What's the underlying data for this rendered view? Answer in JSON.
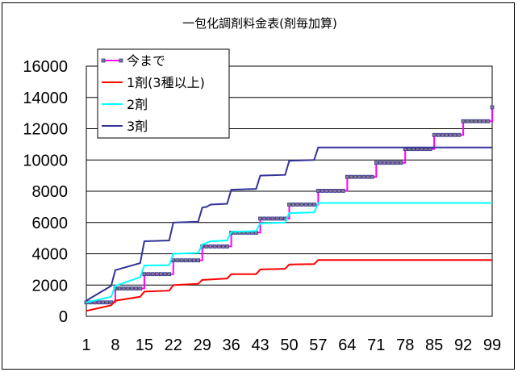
{
  "chart_data": {
    "type": "line",
    "title": "一包化調剤料金表(剤毎加算)",
    "xlabel": "",
    "ylabel": "",
    "ylim": [
      0,
      16000
    ],
    "yticks": [
      "0",
      "2000",
      "4000",
      "6000",
      "8000",
      "10000",
      "12000",
      "14000",
      "16000"
    ],
    "xlim": [
      1,
      99
    ],
    "xticks": [
      "1",
      "8",
      "15",
      "22",
      "29",
      "36",
      "43",
      "50",
      "57",
      "64",
      "71",
      "78",
      "85",
      "92",
      "99"
    ],
    "grid": "horizontal",
    "legend_position": "top-left",
    "series": [
      {
        "name": "今まで",
        "color": "#FF00FF",
        "marker": "square",
        "step_days": [
          1,
          8,
          15,
          22,
          29,
          36,
          43,
          50,
          57,
          64,
          71,
          78,
          85,
          92,
          99
        ],
        "step_values": [
          890,
          1780,
          2700,
          3580,
          4470,
          5350,
          6250,
          7150,
          8030,
          8920,
          9820,
          10700,
          11600,
          12480,
          13370
        ]
      },
      {
        "name": "1剤(3種以上)",
        "color": "#FF0000",
        "points": [
          [
            1,
            350
          ],
          [
            7,
            700
          ],
          [
            8,
            1000
          ],
          [
            14,
            1250
          ],
          [
            15,
            1580
          ],
          [
            21,
            1640
          ],
          [
            22,
            2000
          ],
          [
            28,
            2080
          ],
          [
            29,
            2330
          ],
          [
            35,
            2420
          ],
          [
            36,
            2700
          ],
          [
            42,
            2700
          ],
          [
            43,
            3000
          ],
          [
            49,
            3040
          ],
          [
            50,
            3320
          ],
          [
            56,
            3340
          ],
          [
            57,
            3600
          ],
          [
            99,
            3600
          ]
        ]
      },
      {
        "name": "2剤",
        "color": "#00FFFF",
        "points": [
          [
            1,
            900
          ],
          [
            7,
            1250
          ],
          [
            8,
            1950
          ],
          [
            14,
            2500
          ],
          [
            15,
            3250
          ],
          [
            21,
            3270
          ],
          [
            22,
            4000
          ],
          [
            28,
            4050
          ],
          [
            29,
            4600
          ],
          [
            31,
            4800
          ],
          [
            35,
            4850
          ],
          [
            36,
            5400
          ],
          [
            42,
            5450
          ],
          [
            43,
            5950
          ],
          [
            49,
            6000
          ],
          [
            50,
            6600
          ],
          [
            56,
            6650
          ],
          [
            57,
            7250
          ],
          [
            99,
            7250
          ]
        ]
      },
      {
        "name": "3剤",
        "color": "#333399",
        "points": [
          [
            1,
            1000
          ],
          [
            7,
            1950
          ],
          [
            8,
            2950
          ],
          [
            14,
            3400
          ],
          [
            15,
            4800
          ],
          [
            21,
            4850
          ],
          [
            22,
            6000
          ],
          [
            28,
            6050
          ],
          [
            29,
            6950
          ],
          [
            30,
            7000
          ],
          [
            31,
            7150
          ],
          [
            35,
            7200
          ],
          [
            36,
            8100
          ],
          [
            42,
            8150
          ],
          [
            43,
            9000
          ],
          [
            49,
            9050
          ],
          [
            50,
            9950
          ],
          [
            56,
            10000
          ],
          [
            57,
            10800
          ],
          [
            99,
            10800
          ]
        ]
      }
    ]
  }
}
